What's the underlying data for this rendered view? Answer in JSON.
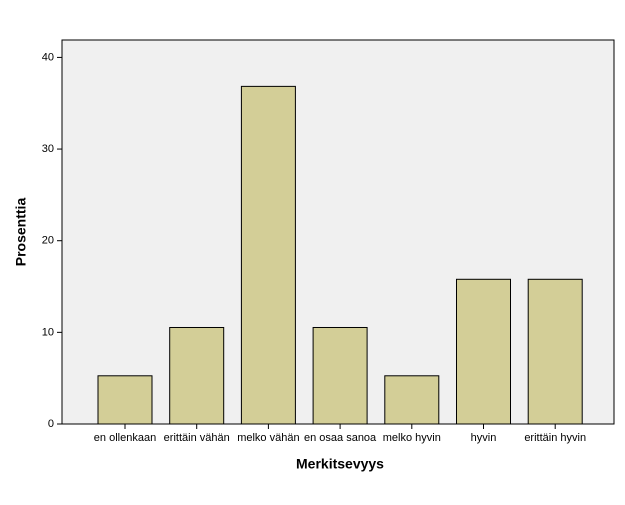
{
  "chart_data": {
    "type": "bar",
    "categories": [
      "en ollenkaan",
      "erittäin vähän",
      "melko vähän",
      "en osaa sanoa",
      "melko hyvin",
      "hyvin",
      "erittäin hyvin"
    ],
    "values": [
      5.26,
      10.53,
      36.84,
      10.53,
      5.26,
      15.79,
      15.79
    ],
    "color": "#d3ce97",
    "x_label": "Merkitsevyys",
    "y_label": "Prosenttia",
    "ylim": [
      0,
      41.9
    ],
    "yticks": [
      0,
      10,
      20,
      30,
      40
    ],
    "grid": false
  }
}
